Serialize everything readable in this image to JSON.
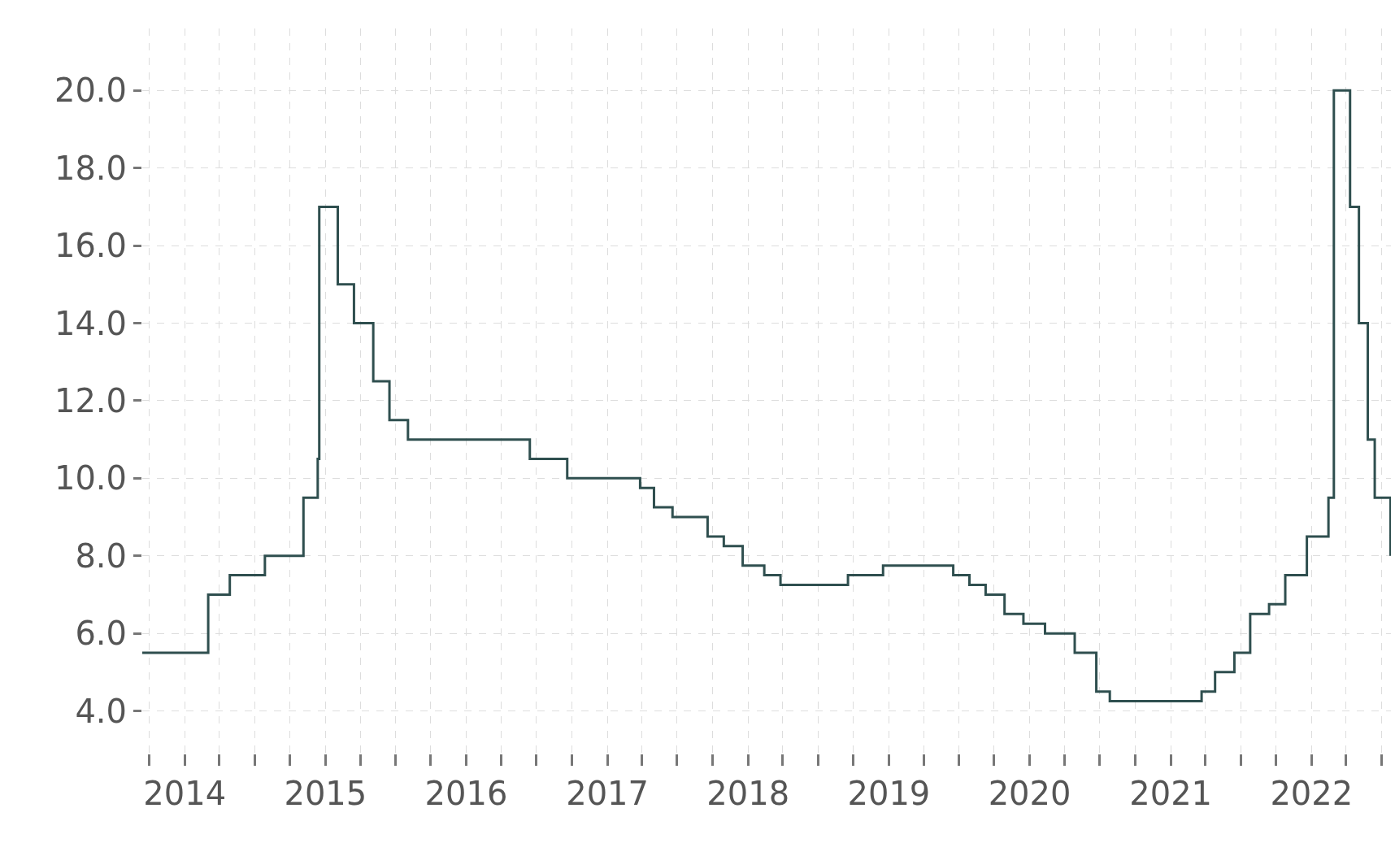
{
  "chart_data": {
    "type": "step",
    "x": [
      "2013-09-13",
      "2014-03-03",
      "2014-04-28",
      "2014-07-28",
      "2014-11-05",
      "2014-12-12",
      "2014-12-16",
      "2015-02-02",
      "2015-03-16",
      "2015-05-05",
      "2015-06-16",
      "2015-08-03",
      "2016-06-14",
      "2016-09-19",
      "2017-03-27",
      "2017-05-02",
      "2017-06-19",
      "2017-09-18",
      "2017-10-30",
      "2017-12-18",
      "2018-02-12",
      "2018-03-26",
      "2018-09-17",
      "2018-12-17",
      "2019-06-17",
      "2019-07-29",
      "2019-09-09",
      "2019-10-28",
      "2019-12-16",
      "2020-02-10",
      "2020-04-27",
      "2020-06-22",
      "2020-07-27",
      "2021-03-22",
      "2021-04-26",
      "2021-06-15",
      "2021-07-26",
      "2021-09-13",
      "2021-10-25",
      "2021-12-20",
      "2022-02-14",
      "2022-02-28",
      "2022-04-11",
      "2022-05-04",
      "2022-05-27",
      "2022-06-14",
      "2022-07-25"
    ],
    "series": [
      {
        "color": "#2f4f4f",
        "values": [
          5.5,
          7.0,
          7.5,
          8.0,
          9.5,
          10.5,
          17.0,
          15.0,
          14.0,
          12.5,
          11.5,
          11.0,
          10.5,
          10.0,
          9.75,
          9.25,
          9.0,
          8.5,
          8.25,
          7.75,
          7.5,
          7.25,
          7.5,
          7.75,
          7.5,
          7.25,
          7.0,
          6.5,
          6.25,
          6.0,
          5.5,
          4.5,
          4.25,
          4.5,
          5.0,
          5.5,
          6.5,
          6.75,
          7.5,
          8.5,
          9.5,
          20.0,
          17.0,
          14.0,
          11.0,
          9.5,
          8.0
        ]
      }
    ],
    "xlim": [
      "2013-09-13",
      "2022-07-26"
    ],
    "xticks": [
      {
        "value": "2013-10",
        "label": null
      },
      {
        "value": "2014",
        "label": "2014"
      },
      {
        "value": "2014-04",
        "label": null
      },
      {
        "value": "2014-07",
        "label": null
      },
      {
        "value": "2014-10",
        "label": null
      },
      {
        "value": "2015",
        "label": "2015"
      },
      {
        "value": "2015-04",
        "label": null
      },
      {
        "value": "2015-07",
        "label": null
      },
      {
        "value": "2015-10",
        "label": null
      },
      {
        "value": "2016",
        "label": "2016"
      },
      {
        "value": "2016-04",
        "label": null
      },
      {
        "value": "2016-07",
        "label": null
      },
      {
        "value": "2016-10",
        "label": null
      },
      {
        "value": "2017",
        "label": "2017"
      },
      {
        "value": "2017-04",
        "label": null
      },
      {
        "value": "2017-07",
        "label": null
      },
      {
        "value": "2017-10",
        "label": null
      },
      {
        "value": "2018",
        "label": "2018"
      },
      {
        "value": "2018-04",
        "label": null
      },
      {
        "value": "2018-07",
        "label": null
      },
      {
        "value": "2018-10",
        "label": null
      },
      {
        "value": "2019",
        "label": "2019"
      },
      {
        "value": "2019-04",
        "label": null
      },
      {
        "value": "2019-07",
        "label": null
      },
      {
        "value": "2019-10",
        "label": null
      },
      {
        "value": "2020",
        "label": "2020"
      },
      {
        "value": "2020-04",
        "label": null
      },
      {
        "value": "2020-07",
        "label": null
      },
      {
        "value": "2020-10",
        "label": null
      },
      {
        "value": "2021",
        "label": "2021"
      },
      {
        "value": "2021-04",
        "label": null
      },
      {
        "value": "2021-07",
        "label": null
      },
      {
        "value": "2021-10",
        "label": null
      },
      {
        "value": "2022",
        "label": "2022"
      },
      {
        "value": "2022-04",
        "label": null
      },
      {
        "value": "2022-07",
        "label": null
      }
    ],
    "ylim": [
      2.9,
      21.6
    ],
    "yticks": [
      {
        "value": 4,
        "label": "4.0"
      },
      {
        "value": 6,
        "label": "6.0"
      },
      {
        "value": 8,
        "label": "8.0"
      },
      {
        "value": 10,
        "label": "10.0"
      },
      {
        "value": 12,
        "label": "12.0"
      },
      {
        "value": 14,
        "label": "14.0"
      },
      {
        "value": 16,
        "label": "16.0"
      },
      {
        "value": 18,
        "label": "18.0"
      },
      {
        "value": 20,
        "label": "20.0"
      }
    ],
    "grid": true,
    "line_style": "solid"
  }
}
